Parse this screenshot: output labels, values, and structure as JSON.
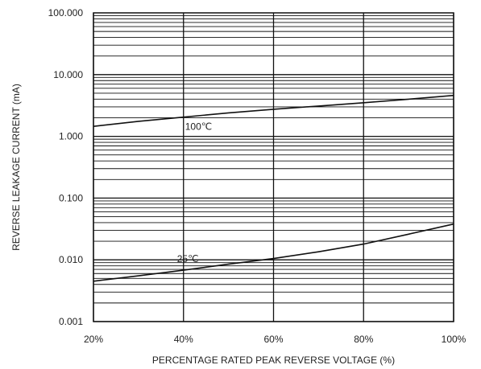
{
  "chart_data": {
    "type": "line",
    "title": "",
    "xlabel": "PERCENTAGE RATED PEAK REVERSE VOLTAGE (%)",
    "ylabel": "REVERSE LEAKAGE CURRENT (mA)",
    "x_unit": "%",
    "y_unit": "mA",
    "x_scale": "linear",
    "y_scale": "log",
    "xlim": [
      20,
      100
    ],
    "ylim": [
      0.001,
      100
    ],
    "x_ticks": [
      20,
      40,
      60,
      80,
      100
    ],
    "x_tick_labels": [
      "20%",
      "40%",
      "60%",
      "80%",
      "100%"
    ],
    "y_ticks": [
      0.001,
      0.01,
      0.1,
      1,
      10,
      100
    ],
    "y_tick_labels": [
      "0.001",
      "0.010",
      "0.100",
      "1.000",
      "10.000",
      "100.000"
    ],
    "grid": true,
    "legend": "none",
    "colors": {
      "line": "#111111",
      "grid": "#111111",
      "text": "#222222"
    },
    "series": [
      {
        "name": "100℃",
        "x": [
          20,
          30,
          40,
          50,
          60,
          70,
          80,
          90,
          100
        ],
        "y": [
          1.45,
          1.75,
          2.05,
          2.4,
          2.75,
          3.1,
          3.5,
          4.0,
          4.6
        ]
      },
      {
        "name": "25℃",
        "x": [
          20,
          30,
          40,
          50,
          60,
          70,
          80,
          90,
          100
        ],
        "y": [
          0.0045,
          0.0055,
          0.0068,
          0.0085,
          0.0105,
          0.0135,
          0.018,
          0.026,
          0.038
        ]
      }
    ]
  }
}
